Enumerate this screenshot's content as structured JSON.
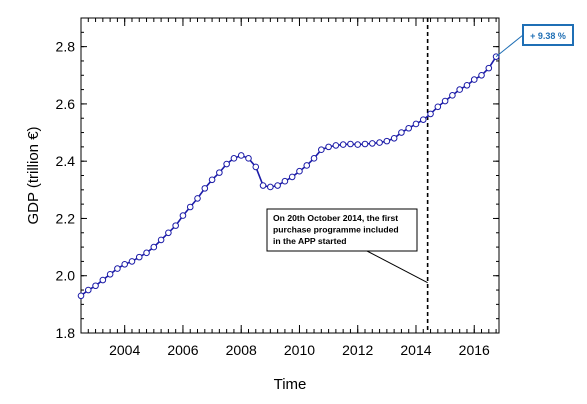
{
  "chart_data": {
    "type": "line",
    "xlabel": "Time",
    "ylabel": "GDP (trillion €)",
    "xlim": [
      2002.5,
      2016.85
    ],
    "ylim": [
      1.8,
      2.9
    ],
    "x_ticks": [
      2004,
      2006,
      2008,
      2010,
      2012,
      2014,
      2016
    ],
    "x_tick_labels": [
      "2004",
      "2006",
      "2008",
      "2010",
      "2012",
      "2014",
      "2016"
    ],
    "y_ticks": [
      1.8,
      2.0,
      2.2,
      2.4,
      2.6,
      2.8
    ],
    "y_tick_labels": [
      "1.8",
      "2.0",
      "2.2",
      "2.4",
      "2.6",
      "2.8"
    ],
    "grid": false,
    "series": [
      {
        "x": [
          2002.5,
          2002.75,
          2003.0,
          2003.25,
          2003.5,
          2003.75,
          2004.0,
          2004.25,
          2004.5,
          2004.75,
          2005.0,
          2005.25,
          2005.5,
          2005.75,
          2006.0,
          2006.25,
          2006.5,
          2006.75,
          2007.0,
          2007.25,
          2007.5,
          2007.75,
          2008.0,
          2008.25,
          2008.5,
          2008.75,
          2009.0,
          2009.25,
          2009.5,
          2009.75,
          2010.0,
          2010.25,
          2010.5,
          2010.75,
          2011.0,
          2011.25,
          2011.5,
          2011.75,
          2012.0,
          2012.25,
          2012.5,
          2012.75,
          2013.0,
          2013.25,
          2013.5,
          2013.75,
          2014.0,
          2014.25,
          2014.5,
          2014.75,
          2015.0,
          2015.25,
          2015.5,
          2015.75,
          2016.0,
          2016.25,
          2016.5,
          2016.75
        ],
        "values": [
          1.93,
          1.95,
          1.965,
          1.985,
          2.005,
          2.025,
          2.04,
          2.05,
          2.065,
          2.08,
          2.1,
          2.125,
          2.15,
          2.175,
          2.21,
          2.24,
          2.27,
          2.305,
          2.335,
          2.36,
          2.39,
          2.41,
          2.42,
          2.41,
          2.38,
          2.315,
          2.31,
          2.315,
          2.33,
          2.345,
          2.365,
          2.385,
          2.41,
          2.44,
          2.45,
          2.455,
          2.458,
          2.46,
          2.458,
          2.46,
          2.462,
          2.465,
          2.47,
          2.48,
          2.5,
          2.515,
          2.53,
          2.545,
          2.565,
          2.59,
          2.61,
          2.63,
          2.65,
          2.665,
          2.685,
          2.7,
          2.725,
          2.765
        ],
        "color": "#1c1ca8"
      }
    ],
    "reference_line": {
      "x": 2014.4,
      "style": "dashed"
    },
    "annotation": {
      "lines": [
        "On 20th October 2014, the first",
        "purchase programme included",
        "in the APP started"
      ],
      "arrow_target": [
        2014.4,
        2.0
      ]
    },
    "end_badge": {
      "text": "+ 9.38 %",
      "color": "#1f6fb5"
    }
  }
}
